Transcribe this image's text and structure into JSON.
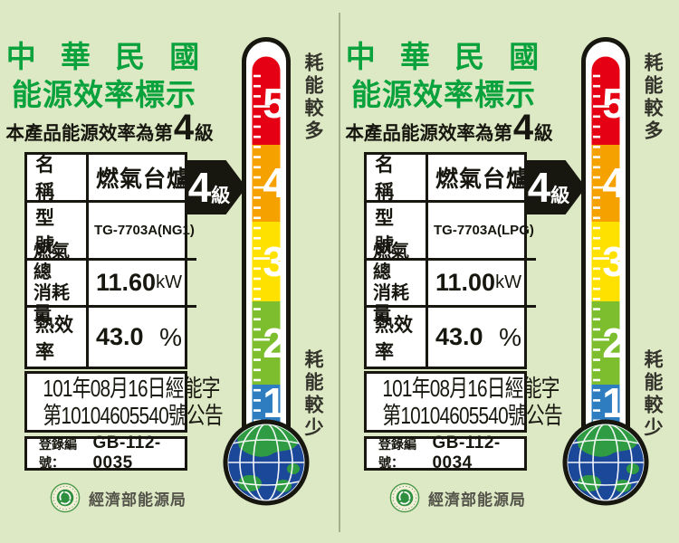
{
  "labels": [
    {
      "title_line1": "中 華 民 國",
      "title_line2": "能源效率標示",
      "efficiency_prefix": "本產品能源效率為第",
      "efficiency_grade": "4",
      "efficiency_suffix": "級",
      "arrow_grade": "4",
      "arrow_grade_suffix": "級",
      "table": {
        "rows": [
          {
            "label": "名　稱",
            "value": "燃氣台爐"
          },
          {
            "label": "型　號",
            "value": "TG-7703A(NG1)"
          },
          {
            "label": "燃氣總\n消耗量",
            "value": "11.60",
            "unit": "kW"
          },
          {
            "label": "熱效率",
            "value": "43.0",
            "unit": "%"
          }
        ]
      },
      "announcement_line1": "101年08月16日經能字",
      "announcement_line2": "第10104605540號公告",
      "registration_label": "登錄編號：",
      "registration_value": "GB-112-0035",
      "agency": "經濟部能源局"
    },
    {
      "title_line1": "中 華 民 國",
      "title_line2": "能源效率標示",
      "efficiency_prefix": "本產品能源效率為第",
      "efficiency_grade": "4",
      "efficiency_suffix": "級",
      "arrow_grade": "4",
      "arrow_grade_suffix": "級",
      "table": {
        "rows": [
          {
            "label": "名　稱",
            "value": "燃氣台爐"
          },
          {
            "label": "型　號",
            "value": "TG-7703A(LPG)"
          },
          {
            "label": "燃氣總\n消耗量",
            "value": "11.00",
            "unit": "kW"
          },
          {
            "label": "熱效率",
            "value": "43.0",
            "unit": "%"
          }
        ]
      },
      "announcement_line1": "101年08月16日經能字",
      "announcement_line2": "第10104605540號公告",
      "registration_label": "登錄編號：",
      "registration_value": "GB-112-0034",
      "agency": "經濟部能源局"
    }
  ],
  "thermometer": {
    "more_label": "耗能較多",
    "less_label": "耗能較少",
    "levels": [
      {
        "value": "5",
        "color": "#e60013"
      },
      {
        "value": "4",
        "color": "#f5a200"
      },
      {
        "value": "3",
        "color": "#ffe100"
      },
      {
        "value": "2",
        "color": "#7cbe2e"
      },
      {
        "value": "1",
        "color": "#2e7dc0"
      }
    ]
  },
  "colors": {
    "background": "#dde8c4",
    "title_green": "#0aa23d",
    "ink_black": "#17170f",
    "globe_ocean": "#1c4899",
    "globe_land": "#2f9b43",
    "seal_green": "#2e8f3e"
  }
}
